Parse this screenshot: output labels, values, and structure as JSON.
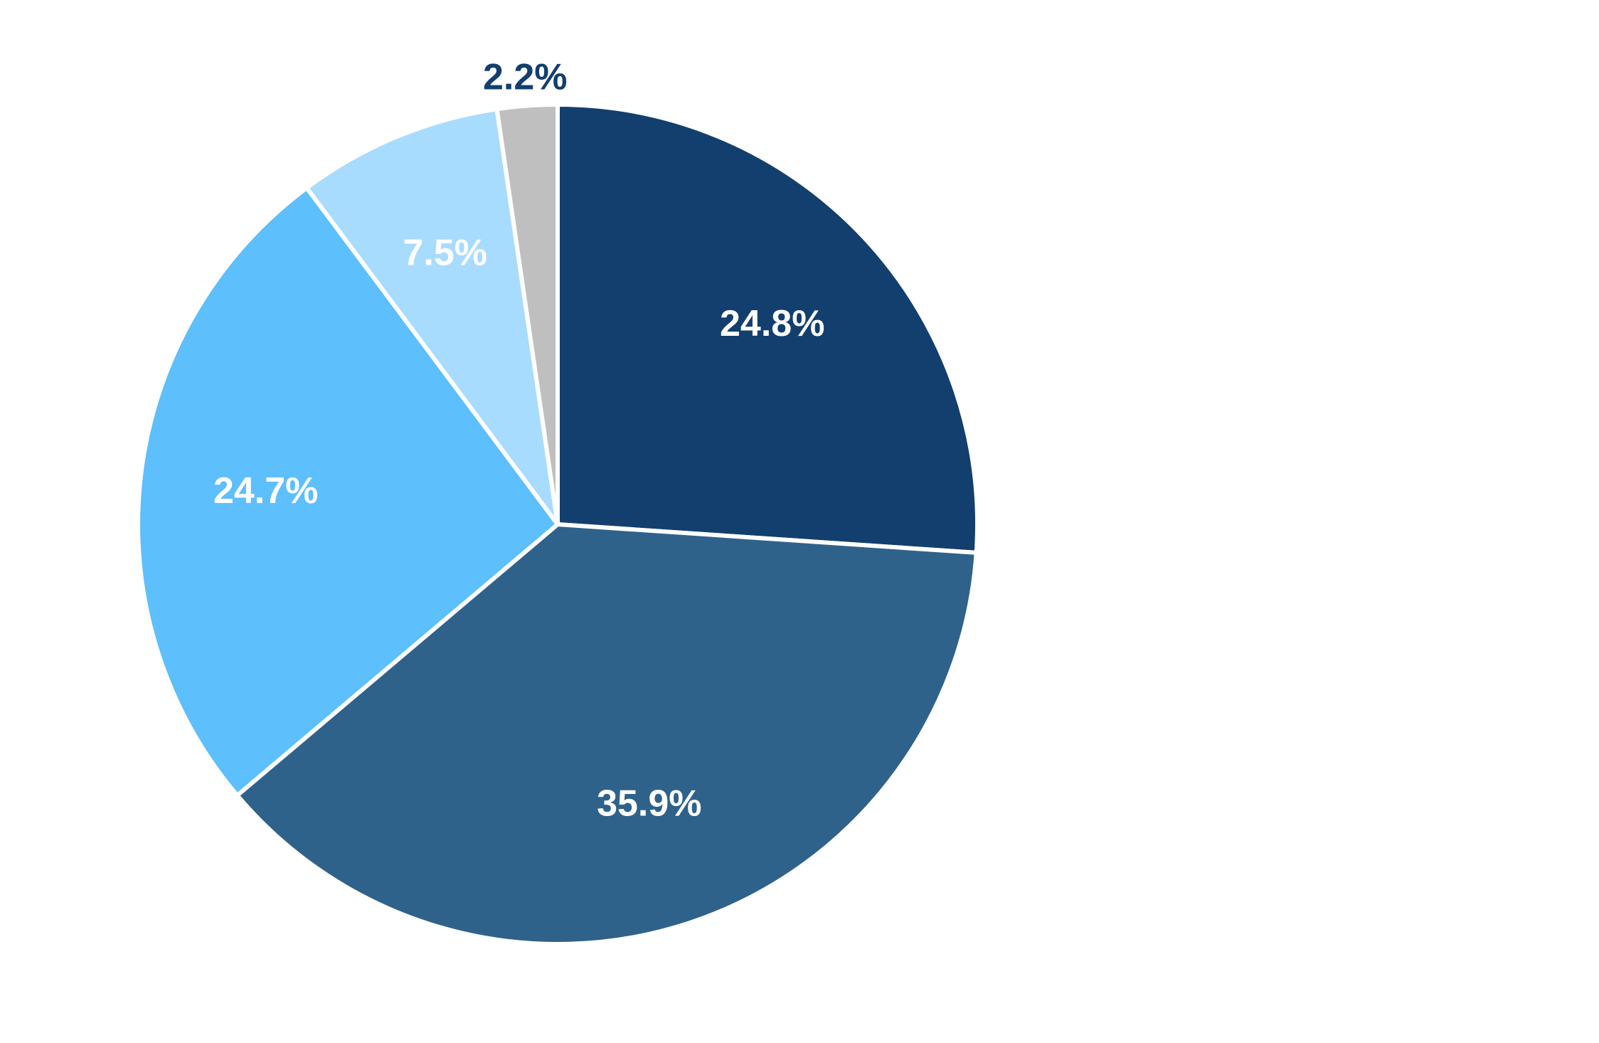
{
  "chart_data": {
    "type": "pie",
    "start_angle_deg": 0,
    "direction": "clockwise",
    "slices": [
      {
        "value": 24.8,
        "label": "24.8%",
        "color": "#123F6E",
        "label_color": "#FFFFFF"
      },
      {
        "value": 35.9,
        "label": "35.9%",
        "color": "#2F628A",
        "label_color": "#FFFFFF"
      },
      {
        "value": 24.7,
        "label": "24.7%",
        "color": "#5DBFFC",
        "label_color": "#FFFFFF"
      },
      {
        "value": 7.5,
        "label": "7.5%",
        "color": "#A8DCFF",
        "label_color": "#FFFFFF"
      },
      {
        "value": 2.2,
        "label": "2.2%",
        "color": "#BFBFBF",
        "label_color": "#123F6E"
      }
    ],
    "legend": "none",
    "separator_color": "#FFFFFF"
  }
}
